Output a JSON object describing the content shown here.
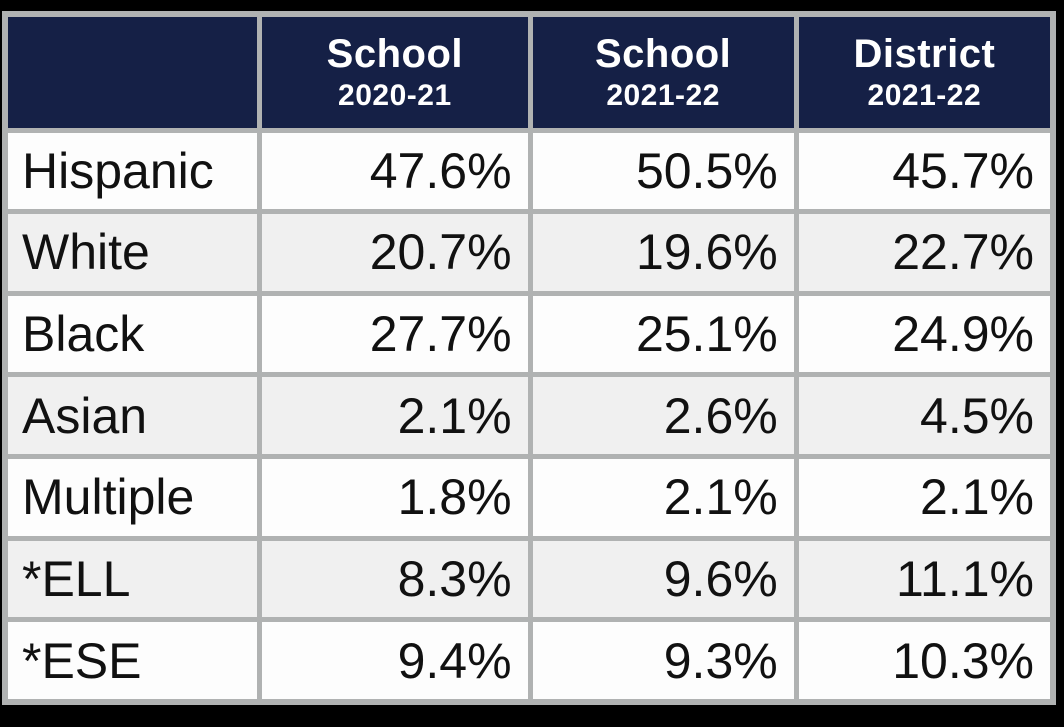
{
  "chart_data": {
    "type": "table",
    "title": "",
    "columns": [
      "",
      "School 2020-21",
      "School 2021-22",
      "District 2021-22"
    ],
    "rows": [
      {
        "label": "Hispanic",
        "values": [
          47.6,
          50.5,
          45.7
        ]
      },
      {
        "label": "White",
        "values": [
          20.7,
          19.6,
          22.7
        ]
      },
      {
        "label": "Black",
        "values": [
          27.7,
          25.1,
          24.9
        ]
      },
      {
        "label": "Asian",
        "values": [
          2.1,
          2.6,
          4.5
        ]
      },
      {
        "label": "Multiple",
        "values": [
          1.8,
          2.1,
          2.1
        ]
      },
      {
        "label": "*ELL",
        "values": [
          8.3,
          9.6,
          11.1
        ]
      },
      {
        "label": "*ESE",
        "values": [
          9.4,
          9.3,
          10.3
        ]
      }
    ],
    "units": "percent"
  },
  "table": {
    "headers": [
      {
        "title": "",
        "subtitle": ""
      },
      {
        "title": "School",
        "subtitle": "2020-21"
      },
      {
        "title": "School",
        "subtitle": "2021-22"
      },
      {
        "title": "District",
        "subtitle": "2021-22"
      }
    ],
    "rows": [
      {
        "label": "Hispanic",
        "values": [
          "47.6%",
          "50.5%",
          "45.7%"
        ]
      },
      {
        "label": "White",
        "values": [
          "20.7%",
          "19.6%",
          "22.7%"
        ]
      },
      {
        "label": "Black",
        "values": [
          "27.7%",
          "25.1%",
          "24.9%"
        ]
      },
      {
        "label": "Asian",
        "values": [
          "2.1%",
          "2.6%",
          "4.5%"
        ]
      },
      {
        "label": "Multiple",
        "values": [
          "1.8%",
          "2.1%",
          "2.1%"
        ]
      },
      {
        "label": "*ELL",
        "values": [
          "8.3%",
          "9.6%",
          "11.1%"
        ]
      },
      {
        "label": "*ESE",
        "values": [
          "9.4%",
          "9.3%",
          "10.3%"
        ]
      }
    ]
  },
  "colors": {
    "header_bg": "#152046",
    "header_text": "#ffffff",
    "grid_border": "#b0b2b2",
    "row_white_bg": "#fdfdfd",
    "row_gray_bg": "#f0f0f0",
    "cell_text": "#111111",
    "frame": "#000000"
  }
}
